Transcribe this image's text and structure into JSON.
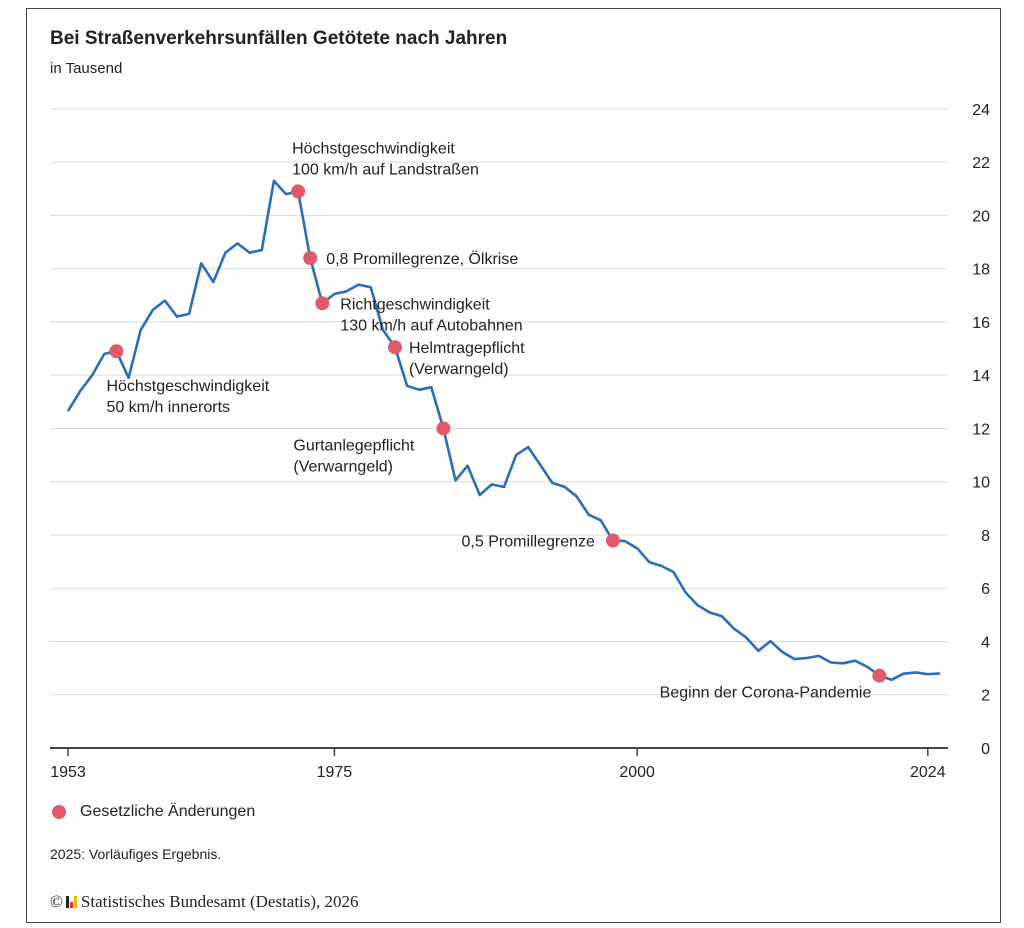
{
  "chart_data": {
    "type": "line",
    "title": "Bei Straßenverkehrsunfällen Getötete nach Jahren",
    "subtitle": "in Tausend",
    "xlim": [
      1953,
      2025
    ],
    "ylim": [
      0,
      24
    ],
    "x_ticks": [
      1953,
      1975,
      2000,
      2024
    ],
    "y_ticks": [
      0,
      2,
      4,
      6,
      8,
      10,
      12,
      14,
      16,
      18,
      20,
      22,
      24
    ],
    "grid": true,
    "y_axis_side": "right",
    "line_color": "#2a6ebb",
    "marker_color": "#e05a69",
    "x": [
      1953,
      1954,
      1955,
      1956,
      1957,
      1958,
      1959,
      1960,
      1961,
      1962,
      1963,
      1964,
      1965,
      1966,
      1967,
      1968,
      1969,
      1970,
      1971,
      1972,
      1973,
      1974,
      1975,
      1976,
      1977,
      1978,
      1979,
      1980,
      1981,
      1982,
      1983,
      1984,
      1985,
      1986,
      1987,
      1988,
      1989,
      1990,
      1991,
      1992,
      1993,
      1994,
      1995,
      1996,
      1997,
      1998,
      1999,
      2000,
      2001,
      2002,
      2003,
      2004,
      2005,
      2006,
      2007,
      2008,
      2009,
      2010,
      2011,
      2012,
      2013,
      2014,
      2015,
      2016,
      2017,
      2018,
      2019,
      2020,
      2021,
      2022,
      2023,
      2024,
      2025
    ],
    "y": [
      12.65,
      13.4,
      14.0,
      14.8,
      14.9,
      13.9,
      15.7,
      16.45,
      16.8,
      16.2,
      16.3,
      18.2,
      17.5,
      18.6,
      18.95,
      18.6,
      18.7,
      21.3,
      20.8,
      20.9,
      18.4,
      16.7,
      17.05,
      17.15,
      17.4,
      17.3,
      15.7,
      15.05,
      13.6,
      13.45,
      13.55,
      12.0,
      10.05,
      10.6,
      9.5,
      9.9,
      9.8,
      11.0,
      11.3,
      10.63,
      9.95,
      9.81,
      9.45,
      8.76,
      8.55,
      7.79,
      7.77,
      7.5,
      6.98,
      6.84,
      6.61,
      5.84,
      5.36,
      5.09,
      4.95,
      4.48,
      4.15,
      3.65,
      4.01,
      3.6,
      3.34,
      3.38,
      3.46,
      3.21,
      3.18,
      3.28,
      3.05,
      2.72,
      2.56,
      2.79,
      2.84,
      2.77,
      2.8
    ],
    "annotations": [
      {
        "year": 1957,
        "lines": [
          "Höchstgeschwindigkeit",
          "50 km/h innerorts"
        ]
      },
      {
        "year": 1972,
        "lines": [
          "Höchstgeschwindigkeit",
          "100 km/h auf Landstraßen"
        ]
      },
      {
        "year": 1973,
        "lines": [
          "0,8 Promillegrenze, Ölkrise"
        ]
      },
      {
        "year": 1974,
        "lines": [
          "Richtgeschwindigkeit",
          "130 km/h auf Autobahnen"
        ]
      },
      {
        "year": 1980,
        "lines": [
          "Helmtragepflicht",
          "(Verwarngeld)"
        ]
      },
      {
        "year": 1984,
        "lines": [
          "Gurtanlegepflicht",
          "(Verwarngeld)"
        ]
      },
      {
        "year": 1998,
        "lines": [
          "0,5 Promillegrenze"
        ]
      },
      {
        "year": 2020,
        "lines": [
          "Beginn der Corona-Pandemie"
        ]
      }
    ],
    "legend": {
      "label": "Gesetzliche Änderungen",
      "placement": "bottom-left"
    }
  },
  "note": "2025: Vorläufiges Ergebnis.",
  "source": {
    "copyright": "©",
    "text": "Statistisches Bundesamt (Destatis), 2026"
  }
}
